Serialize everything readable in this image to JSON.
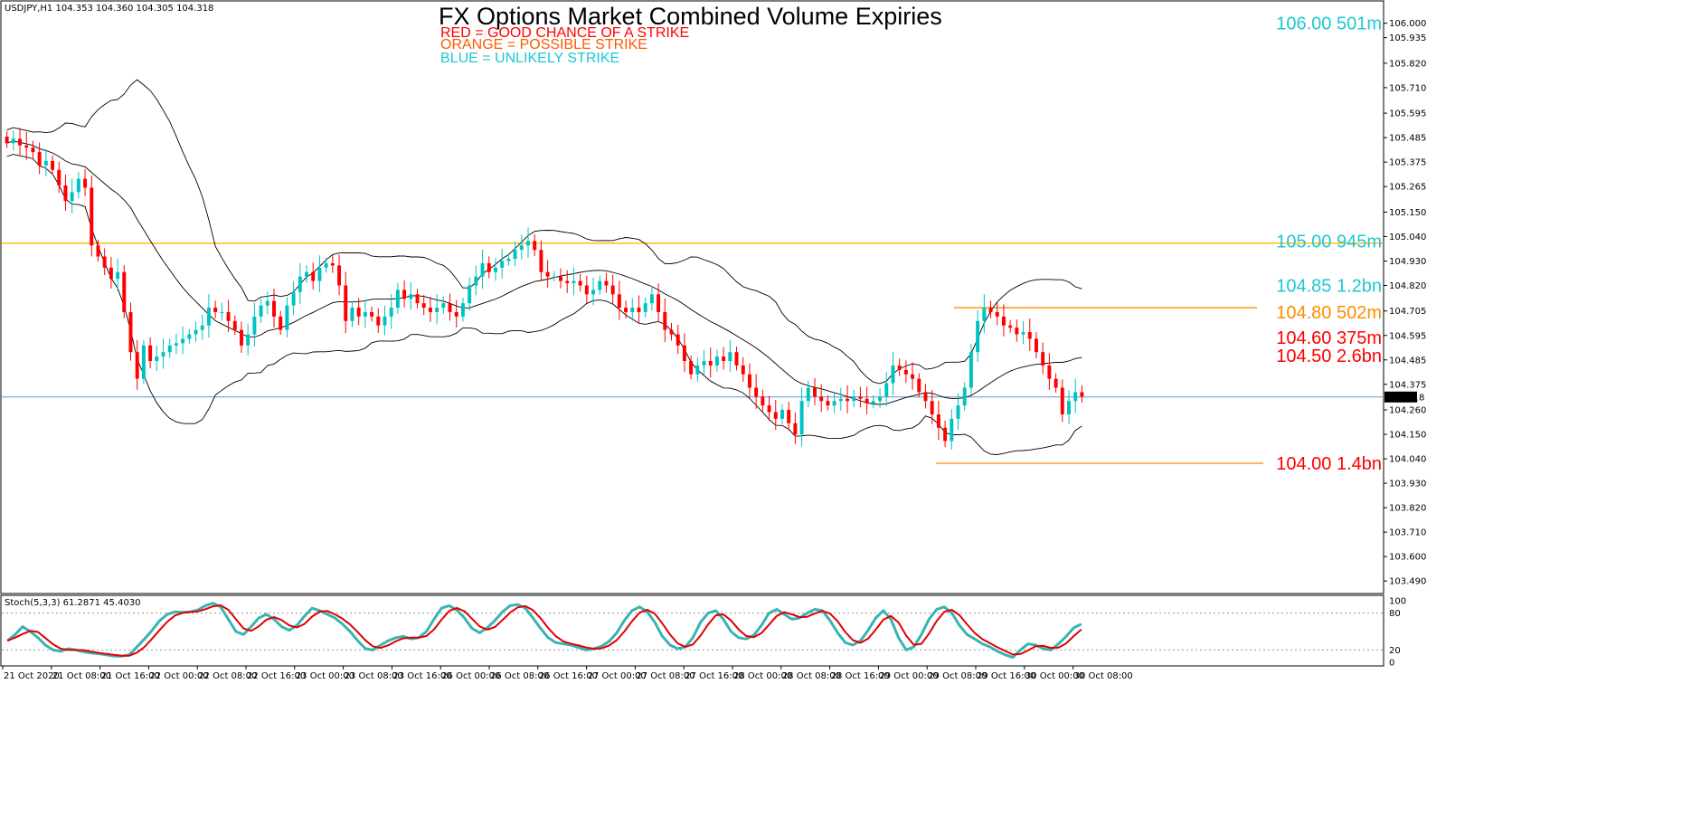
{
  "header": {
    "symbol_info": "USDJPY,H1  104.353 104.360 104.305 104.318",
    "stoch_info": "Stoch(5,3,3) 61.2871 45.4030"
  },
  "colors": {
    "bull": "#00c2c2",
    "bear": "#ff0000",
    "red": "#ff0000",
    "orange": "#ff8c00",
    "blue": "#1ec8d2",
    "level_orange_line": "#ffb400",
    "current_line": "#6a8fd6",
    "bands": "#000000",
    "stoch_main": "#3ab3b3",
    "stoch_signal": "#e00000"
  },
  "chart_data": {
    "type": "candlestick",
    "title": "FX Options Market Combined Volume Expiries",
    "legend": [
      {
        "text": "RED = GOOD CHANCE OF A STRIKE",
        "color": "red"
      },
      {
        "text": "ORANGE = POSSIBLE STRIKE",
        "color": "orange"
      },
      {
        "text": "BLUE = UNLIKELY STRIKE",
        "color": "blue"
      }
    ],
    "price_axis": {
      "ylim": [
        103.45,
        106.08
      ],
      "ticks": [
        "106.000",
        "105.935",
        "105.820",
        "105.710",
        "105.595",
        "105.485",
        "105.375",
        "105.265",
        "105.150",
        "105.040",
        "104.930",
        "104.820",
        "104.705",
        "104.595",
        "104.485",
        "104.375",
        "104.260",
        "104.150",
        "104.040",
        "103.930",
        "103.820",
        "103.710",
        "103.600",
        "103.490"
      ],
      "current_price": "104.318"
    },
    "x_ticks": [
      "21 Oct 2020",
      "21 Oct 08:00",
      "21 Oct 16:00",
      "22 Oct 00:00",
      "22 Oct 08:00",
      "22 Oct 16:00",
      "23 Oct 00:00",
      "23 Oct 08:00",
      "23 Oct 16:00",
      "26 Oct 00:00",
      "26 Oct 08:00",
      "26 Oct 16:00",
      "27 Oct 00:00",
      "27 Oct 08:00",
      "27 Oct 16:00",
      "28 Oct 00:00",
      "28 Oct 08:00",
      "28 Oct 16:00",
      "29 Oct 00:00",
      "29 Oct 08:00",
      "29 Oct 16:00",
      "30 Oct 00:00",
      "30 Oct 08:00"
    ],
    "closes": [
      105.46,
      105.48,
      105.45,
      105.44,
      105.42,
      105.36,
      105.38,
      105.34,
      105.27,
      105.2,
      105.24,
      105.3,
      105.26,
      105.0,
      104.95,
      104.9,
      104.85,
      104.88,
      104.7,
      104.52,
      104.4,
      104.55,
      104.48,
      104.5,
      104.52,
      104.55,
      104.56,
      104.58,
      104.6,
      104.62,
      104.64,
      104.72,
      104.7,
      104.7,
      104.66,
      104.62,
      104.55,
      104.6,
      104.68,
      104.73,
      104.75,
      104.68,
      104.62,
      104.73,
      104.79,
      104.86,
      104.88,
      104.84,
      104.9,
      104.92,
      104.91,
      104.82,
      104.66,
      104.72,
      104.68,
      104.7,
      104.68,
      104.64,
      104.68,
      104.72,
      104.8,
      104.76,
      104.78,
      104.74,
      104.72,
      104.7,
      104.72,
      104.74,
      104.7,
      104.68,
      104.74,
      104.82,
      104.86,
      104.92,
      104.88,
      104.9,
      104.93,
      104.94,
      104.98,
      105.0,
      105.02,
      104.98,
      104.88,
      104.86,
      104.86,
      104.84,
      104.83,
      104.84,
      104.82,
      104.78,
      104.8,
      104.84,
      104.82,
      104.78,
      104.72,
      104.7,
      104.72,
      104.7,
      104.74,
      104.78,
      104.7,
      104.62,
      104.6,
      104.55,
      104.48,
      104.42,
      104.46,
      104.48,
      104.46,
      104.5,
      104.48,
      104.52,
      104.46,
      104.42,
      104.36,
      104.32,
      104.28,
      104.25,
      104.22,
      104.26,
      104.2,
      104.15,
      104.3,
      104.36,
      104.32,
      104.3,
      104.28,
      104.3,
      104.31,
      104.3,
      104.32,
      104.31,
      104.29,
      104.3,
      104.32,
      104.38,
      104.46,
      104.44,
      104.42,
      104.4,
      104.34,
      104.3,
      104.24,
      104.18,
      104.12,
      104.22,
      104.28,
      104.36,
      104.52,
      104.66,
      104.72,
      104.7,
      104.68,
      104.64,
      104.63,
      104.6,
      104.61,
      104.58,
      104.52,
      104.46,
      104.4,
      104.36,
      104.24,
      104.3,
      104.34,
      104.32
    ],
    "level_lines": [
      {
        "price": 105.01,
        "color": "level_orange_line",
        "full_width": true
      },
      {
        "price": 104.72,
        "color": "orange",
        "from_index": 1055,
        "to_index": 1390
      },
      {
        "price": 104.02,
        "color": "orange",
        "from_index": 1035,
        "to_index": 1397
      }
    ],
    "expiry_labels": [
      {
        "text": "106.00 501m",
        "price": 106.0,
        "color": "blue"
      },
      {
        "text": "105.00 945m",
        "price": 105.02,
        "color": "blue"
      },
      {
        "text": "104.85 1.2bn",
        "price": 104.82,
        "color": "blue"
      },
      {
        "text": "104.80 502m",
        "price": 104.7,
        "color": "orange"
      },
      {
        "text": "104.60 375m",
        "price": 104.585,
        "color": "red"
      },
      {
        "text": "104.50 2.6bn",
        "price": 104.505,
        "color": "red"
      },
      {
        "text": "104.00 1.4bn",
        "price": 104.02,
        "color": "red"
      }
    ],
    "stochastic": {
      "ylim": [
        0,
        100
      ],
      "ticks": [
        "100",
        "80",
        "20",
        "0"
      ],
      "k": [
        35,
        45,
        58,
        50,
        40,
        28,
        20,
        18,
        22,
        20,
        17,
        15,
        14,
        12,
        10,
        10,
        12,
        25,
        38,
        52,
        68,
        78,
        82,
        81,
        82,
        85,
        92,
        96,
        90,
        70,
        50,
        45,
        58,
        72,
        78,
        70,
        58,
        52,
        60,
        75,
        88,
        84,
        78,
        72,
        62,
        50,
        35,
        22,
        20,
        28,
        35,
        40,
        42,
        38,
        40,
        50,
        70,
        88,
        92,
        85,
        72,
        55,
        48,
        56,
        68,
        82,
        92,
        94,
        88,
        72,
        55,
        40,
        32,
        30,
        28,
        24,
        20,
        22,
        26,
        34,
        48,
        68,
        84,
        90,
        82,
        65,
        42,
        28,
        22,
        25,
        40,
        65,
        80,
        84,
        70,
        50,
        40,
        38,
        44,
        60,
        80,
        86,
        78,
        70,
        72,
        80,
        86,
        84,
        68,
        48,
        32,
        28,
        35,
        52,
        72,
        84,
        70,
        40,
        20,
        25,
        45,
        70,
        86,
        90,
        80,
        60,
        45,
        38,
        30,
        25,
        18,
        12,
        8,
        20,
        30,
        28,
        22,
        20,
        30,
        42,
        56,
        62
      ]
    }
  }
}
